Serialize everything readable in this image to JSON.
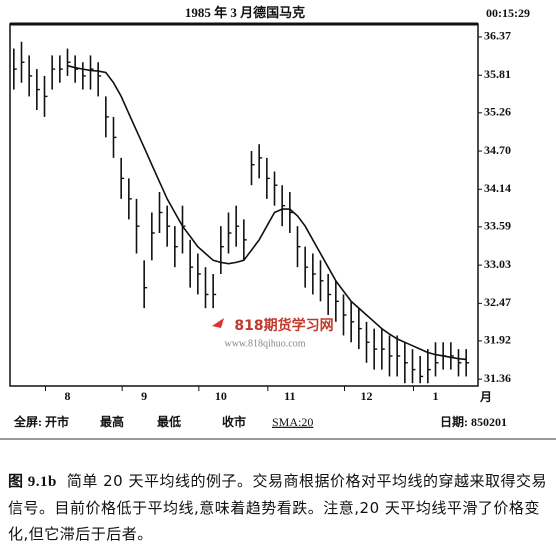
{
  "chart_data": {
    "type": "ohlc",
    "title": "1985 年 3 月德国马克",
    "time": "00:15:29",
    "x_unit": "月",
    "categories": [
      null,
      null,
      null,
      null,
      null,
      null,
      null,
      "8",
      null,
      null,
      null,
      null,
      null,
      null,
      null,
      null,
      null,
      "9",
      null,
      null,
      null,
      null,
      null,
      null,
      null,
      null,
      null,
      "10",
      null,
      null,
      null,
      null,
      null,
      null,
      null,
      null,
      "11",
      null,
      null,
      null,
      null,
      null,
      null,
      null,
      null,
      null,
      "12",
      null,
      null,
      null,
      null,
      null,
      null,
      null,
      null,
      "1",
      null,
      null,
      null,
      null
    ],
    "high": [
      36.2,
      36.3,
      36.1,
      35.9,
      35.8,
      36.1,
      36.1,
      36.2,
      36.1,
      36.0,
      36.1,
      36.0,
      35.5,
      35.2,
      34.6,
      34.3,
      34.0,
      33.1,
      33.8,
      34.1,
      33.9,
      33.6,
      33.9,
      33.4,
      33.2,
      33.0,
      32.9,
      33.6,
      33.8,
      33.9,
      33.7,
      34.7,
      34.8,
      34.6,
      34.4,
      34.2,
      34.1,
      33.6,
      33.3,
      33.2,
      33.1,
      32.9,
      32.8,
      32.6,
      32.5,
      32.4,
      32.2,
      32.1,
      32.1,
      32.0,
      32.0,
      31.9,
      31.8,
      31.7,
      31.8,
      31.9,
      31.9,
      31.9,
      31.8,
      31.8
    ],
    "low": [
      35.6,
      35.7,
      35.5,
      35.3,
      35.2,
      35.6,
      35.7,
      35.8,
      35.7,
      35.6,
      35.6,
      35.5,
      34.9,
      34.6,
      34.0,
      33.7,
      33.2,
      32.4,
      33.1,
      33.5,
      33.3,
      33.0,
      33.2,
      32.7,
      32.6,
      32.4,
      32.4,
      32.9,
      33.2,
      33.3,
      33.1,
      34.2,
      34.3,
      34.0,
      33.9,
      33.6,
      33.5,
      33.0,
      32.7,
      32.6,
      32.5,
      32.3,
      32.2,
      32.0,
      31.9,
      31.8,
      31.6,
      31.5,
      31.5,
      31.4,
      31.4,
      31.3,
      31.3,
      31.3,
      31.3,
      31.4,
      31.5,
      31.5,
      31.4,
      31.4
    ],
    "close": [
      35.9,
      36.0,
      35.8,
      35.6,
      35.5,
      35.9,
      35.9,
      36.0,
      35.9,
      35.8,
      35.9,
      35.8,
      35.2,
      34.9,
      34.3,
      34.0,
      33.6,
      32.7,
      33.5,
      33.8,
      33.6,
      33.3,
      33.6,
      33.0,
      32.9,
      32.6,
      32.6,
      33.3,
      33.5,
      33.6,
      33.4,
      34.5,
      34.6,
      34.3,
      34.2,
      33.9,
      33.8,
      33.3,
      33.0,
      32.9,
      32.8,
      32.6,
      32.5,
      32.3,
      32.2,
      32.1,
      31.9,
      31.8,
      31.8,
      31.7,
      31.7,
      31.6,
      31.5,
      31.4,
      31.5,
      31.6,
      31.7,
      31.7,
      31.6,
      31.6
    ],
    "sma": [
      null,
      null,
      null,
      null,
      null,
      null,
      null,
      35.95,
      35.92,
      35.9,
      35.88,
      35.87,
      35.85,
      35.7,
      35.5,
      35.25,
      35.0,
      34.75,
      34.5,
      34.25,
      34.0,
      33.8,
      33.6,
      33.45,
      33.3,
      33.2,
      33.1,
      33.07,
      33.05,
      33.07,
      33.1,
      33.25,
      33.4,
      33.6,
      33.8,
      33.85,
      33.85,
      33.75,
      33.6,
      33.4,
      33.2,
      33.0,
      32.8,
      32.65,
      32.5,
      32.4,
      32.3,
      32.2,
      32.1,
      32.02,
      31.95,
      31.9,
      31.85,
      31.8,
      31.75,
      31.72,
      31.7,
      31.68,
      31.66,
      31.65
    ],
    "color": "#111111",
    "ylim": [
      31.26,
      36.56
    ],
    "yticks": [
      {
        "value": 31.36,
        "label": "31.36"
      },
      31.92,
      32.47,
      33.03,
      33.59,
      34.14,
      {
        "value": 34.7,
        "label": "34.70"
      },
      35.26,
      35.81,
      36.37
    ],
    "watermark": "818期货学习网",
    "watermark_url": "www.818qihuo.com",
    "footer": {
      "fullscreen": "全屏: 开市",
      "high": "最高",
      "low": "最低",
      "close": "收市",
      "sma": "SMA:20",
      "date": "日期: 850201"
    }
  },
  "caption": {
    "label": "图 9.1b",
    "text": "简单 20 天平均线的例子。交易商根据价格对平均线的穿越来取得交易信号。目前价格低于平均线,意味着趋势看跌。注意,20 天平均线平滑了价格变化,但它滞后于后者。"
  }
}
